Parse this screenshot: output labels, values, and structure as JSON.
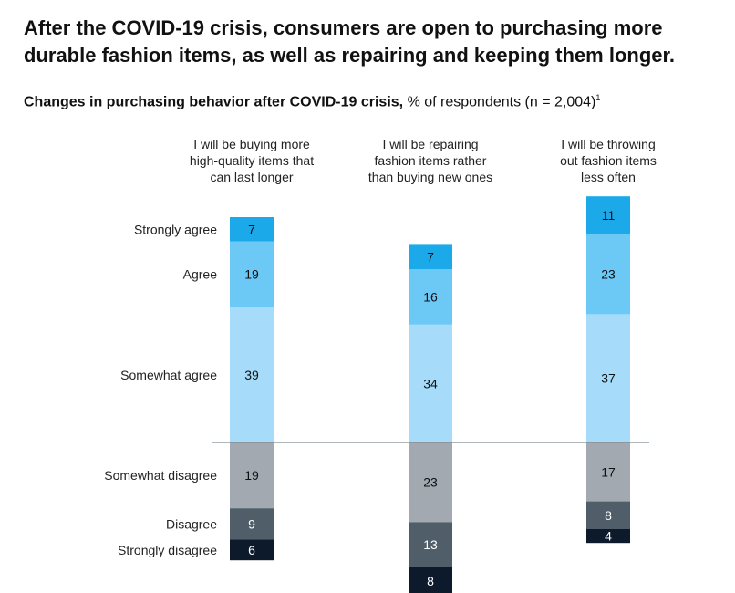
{
  "headline": "After the COVID-19 crisis, consumers are open to purchasing more durable fashion items, as well as repairing and keeping them longer.",
  "subtitle": {
    "bold": "Changes in purchasing behavior after COVID-19 crisis,",
    "normal": " % of respondents (n = 2,004)",
    "footnote": "1"
  },
  "chart_data": {
    "type": "bar",
    "stacked": "diverging",
    "categories": [
      [
        "I will be buying more",
        "high-quality items that",
        "can last longer"
      ],
      [
        "I will be repairing",
        "fashion items rather",
        "than buying new ones"
      ],
      [
        "I will be throwing",
        "out fashion items",
        "less often"
      ]
    ],
    "agree_levels": [
      "Strongly agree",
      "Agree",
      "Somewhat agree"
    ],
    "disagree_levels": [
      "Somewhat disagree",
      "Disagree",
      "Strongly disagree"
    ],
    "series": [
      {
        "name": "Strongly agree",
        "values": [
          7,
          7,
          11
        ],
        "color": "#1ba9ea",
        "side": "agree"
      },
      {
        "name": "Agree",
        "values": [
          19,
          16,
          23
        ],
        "color": "#6cc8f4",
        "side": "agree"
      },
      {
        "name": "Somewhat agree",
        "values": [
          39,
          34,
          37
        ],
        "color": "#a6dcf9",
        "side": "agree"
      },
      {
        "name": "Somewhat disagree",
        "values": [
          19,
          23,
          17
        ],
        "color": "#a3a9b0",
        "side": "disagree"
      },
      {
        "name": "Disagree",
        "values": [
          9,
          13,
          8
        ],
        "color": "#4f5e69",
        "side": "disagree"
      },
      {
        "name": "Strongly disagree",
        "values": [
          6,
          8,
          4
        ],
        "color": "#0c1a2c",
        "side": "disagree"
      }
    ],
    "baseline_color": "#7f8a94",
    "unit": "% of respondents"
  }
}
